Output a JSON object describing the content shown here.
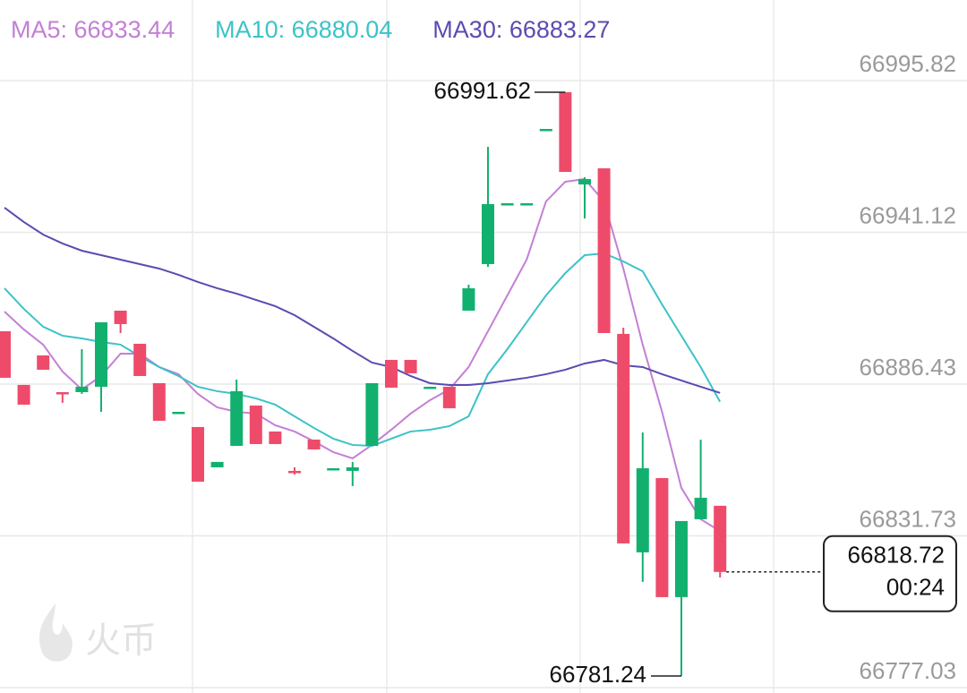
{
  "chart_data": {
    "type": "candlestick",
    "watermark": "火币",
    "open": [
      66905.48,
      66886.12,
      66896.76,
      66883.53,
      66883.53,
      66885.47,
      66912.9,
      66900.96,
      66886.76,
      66876.11,
      66870.95,
      66856.43,
      66864.17,
      66878.69,
      66869.34,
      66855.14,
      66866.43,
      66855.79,
      66855.14,
      66864.17,
      66895.15,
      66895.15,
      66885.15,
      66885.47,
      66912.9,
      66929.67,
      66951.29,
      66951.29,
      66978.07,
      66991.62,
      66958.39,
      66964.2,
      66904.51,
      66825.78,
      66852.56,
      66809.65,
      66837.72,
      66842.56
    ],
    "high": [
      66905.48,
      66886.12,
      66896.76,
      66883.53,
      66899.02,
      66908.7,
      66912.9,
      66900.96,
      66886.76,
      66876.43,
      66870.95,
      66858.37,
      66888.05,
      66878.69,
      66869.34,
      66856.43,
      66866.43,
      66856.11,
      66858.37,
      66886.76,
      66895.15,
      66895.15,
      66885.47,
      66885.47,
      66922.25,
      66971.94,
      66951.61,
      66951.61,
      66978.39,
      66991.62,
      66960.97,
      66964.2,
      66906.77,
      66869.01,
      66852.56,
      66837.07,
      66866.43,
      66842.56
    ],
    "low": [
      66888.7,
      66879.02,
      66891.6,
      66879.66,
      66882.89,
      66876.44,
      66904.83,
      66889.34,
      66873.21,
      66876.11,
      66851.27,
      66856.43,
      66864.17,
      66864.82,
      66864.82,
      66853.85,
      66862.88,
      66855.79,
      66849.66,
      66864.17,
      66885.15,
      66890.31,
      66885.15,
      66877.73,
      66912.9,
      66928.71,
      66951.29,
      66951.29,
      66978.07,
      66962.91,
      66946.13,
      66904.83,
      66829.01,
      66815.13,
      66809.65,
      66781.24,
      66837.72,
      66816.74
    ],
    "close": [
      66888.7,
      66879.02,
      66891.6,
      66883.2,
      66885.47,
      66908.7,
      66908.06,
      66889.34,
      66873.21,
      66876.43,
      66851.27,
      66858.37,
      66883.86,
      66864.82,
      66864.82,
      66854.8,
      66862.88,
      66856.11,
      66856.43,
      66886.76,
      66885.15,
      66890.31,
      66885.47,
      66877.73,
      66920.96,
      66951.29,
      66951.61,
      66951.61,
      66978.39,
      66962.91,
      66960.33,
      66904.83,
      66829.01,
      66856.11,
      66809.65,
      66837.07,
      66845.46,
      66818.72
    ],
    "up_color": "#12b06e",
    "down_color": "#ee4b6a",
    "series": [
      {
        "name": "MA5: 66833.44",
        "color": "#c47fd5",
        "values": [
          66912.57,
          66906.12,
          66900.64,
          66890.96,
          66884.5,
          66889.34,
          66897.41,
          66897.41,
          66892.57,
          66889.99,
          66882.89,
          66878.05,
          66876.44,
          66875.79,
          66871.6,
          66869.34,
          66865.79,
          66861.91,
          66859.66,
          66864.5,
          66869.98,
          66875.79,
          66880.63,
          66884.5,
          66892.57,
          66905.48,
          66918.38,
          66931.29,
          66952.26,
          66959.36,
          66960.33,
          66952.26,
          66928.06,
          66900.64,
          66876.44,
          66849.01,
          66837.72,
          66833.44
        ]
      },
      {
        "name": "MA10: 66880.04",
        "color": "#3cc2c9",
        "values": [
          66920.96,
          66913.54,
          66907.09,
          66903.86,
          66902.89,
          66901.6,
          66900.64,
          66896.44,
          66892.57,
          66889.34,
          66885.47,
          66883.86,
          66882.89,
          66881.28,
          66879.02,
          66874.82,
          66870.63,
          66866.76,
          66864.5,
          66864.17,
          66866.76,
          66869.34,
          66869.98,
          66871.27,
          66874.82,
          66889.99,
          66899.02,
          66908.7,
          66918.38,
          66926.45,
          66932.9,
          66933.55,
          66930.64,
          66927.09,
          66915.15,
          66903.86,
          66892.57,
          66880.04
        ]
      },
      {
        "name": "MA30: 66883.27",
        "color": "#5a4cb0",
        "values": [
          66950.0,
          66944.84,
          66940.32,
          66937.1,
          66934.51,
          66932.9,
          66931.29,
          66929.67,
          66928.06,
          66925.8,
          66923.22,
          66920.96,
          66919.03,
          66916.77,
          66914.51,
          66911.28,
          66907.09,
          66902.89,
          66898.38,
          66894.18,
          66892.57,
          66889.34,
          66886.76,
          66886.12,
          66886.12,
          66886.76,
          66887.73,
          66888.7,
          66889.99,
          66891.6,
          66893.86,
          66895.15,
          66893.21,
          66892.57,
          66889.99,
          66887.73,
          66885.47,
          66883.27
        ]
      }
    ],
    "last_price": 66818.72,
    "countdown": "00:24",
    "ylim": [
      66777.03,
      67024.86
    ],
    "yticks": [
      66777.03,
      66831.73,
      66886.43,
      66941.12,
      66995.82
    ],
    "grid": true
  }
}
